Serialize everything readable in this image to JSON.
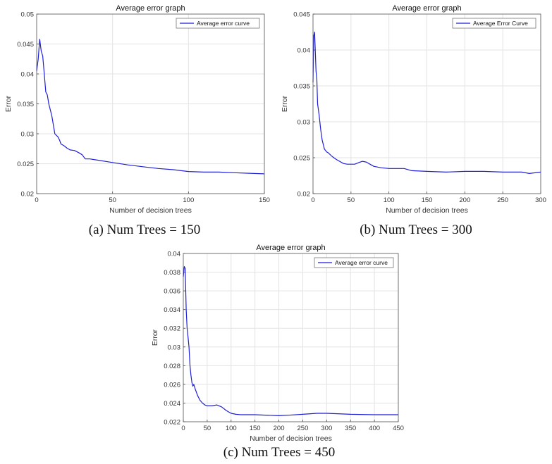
{
  "chart_data": [
    {
      "id": "a",
      "type": "line",
      "title": "Average error graph",
      "xlabel": "Number of decision trees",
      "ylabel": "Error",
      "caption": "(a) Num Trees = 150",
      "xlim": [
        0,
        150
      ],
      "ylim": [
        0.02,
        0.05
      ],
      "xticks": [
        0,
        50,
        100,
        150
      ],
      "yticks": [
        0.02,
        0.025,
        0.03,
        0.035,
        0.04,
        0.045,
        0.05
      ],
      "ytick_labels": [
        "0.02",
        "0.025",
        "0.03",
        "0.035",
        "0.04",
        "0.045",
        "0.05"
      ],
      "grid": true,
      "legend": "top-right",
      "color": "#1f1fd6",
      "series": [
        {
          "name": "Average error curve",
          "x": [
            0,
            1,
            2,
            3,
            4,
            5,
            6,
            7,
            8,
            10,
            12,
            14,
            15,
            16,
            18,
            20,
            22,
            25,
            28,
            30,
            32,
            35,
            40,
            50,
            60,
            70,
            80,
            90,
            100,
            110,
            120,
            130,
            140,
            150
          ],
          "y": [
            0.0405,
            0.0425,
            0.0458,
            0.0438,
            0.043,
            0.04,
            0.037,
            0.0365,
            0.035,
            0.033,
            0.03,
            0.0295,
            0.029,
            0.0283,
            0.028,
            0.0276,
            0.0273,
            0.0272,
            0.0268,
            0.0265,
            0.0258,
            0.0258,
            0.0256,
            0.0252,
            0.0248,
            0.0245,
            0.0242,
            0.024,
            0.0237,
            0.0236,
            0.0236,
            0.0235,
            0.0234,
            0.0233
          ]
        }
      ]
    },
    {
      "id": "b",
      "type": "line",
      "title": "Average error graph",
      "xlabel": "Number of decision trees",
      "ylabel": "Error",
      "caption": "(b) Num Trees = 300",
      "xlim": [
        0,
        300
      ],
      "ylim": [
        0.02,
        0.045
      ],
      "xticks": [
        0,
        50,
        100,
        150,
        200,
        250,
        300
      ],
      "yticks": [
        0.02,
        0.025,
        0.03,
        0.035,
        0.04,
        0.045
      ],
      "ytick_labels": [
        "0.02",
        "0.025",
        "0.03",
        "0.035",
        "0.04",
        "0.045"
      ],
      "grid": true,
      "legend": "top-right",
      "color": "#1f1fd6",
      "series": [
        {
          "name": "Average Error Curve",
          "x": [
            0,
            1,
            2,
            3,
            4,
            5,
            6,
            8,
            10,
            12,
            15,
            18,
            20,
            25,
            30,
            35,
            40,
            45,
            50,
            55,
            60,
            65,
            70,
            75,
            80,
            90,
            100,
            110,
            120,
            130,
            150,
            175,
            200,
            225,
            250,
            275,
            285,
            300
          ],
          "y": [
            0.0355,
            0.042,
            0.0425,
            0.04,
            0.037,
            0.036,
            0.0325,
            0.031,
            0.029,
            0.0275,
            0.0262,
            0.0258,
            0.0257,
            0.0252,
            0.0248,
            0.0245,
            0.0242,
            0.0241,
            0.0241,
            0.0241,
            0.0243,
            0.0245,
            0.0244,
            0.0241,
            0.0238,
            0.0236,
            0.0235,
            0.0235,
            0.0235,
            0.0232,
            0.0231,
            0.023,
            0.0231,
            0.0231,
            0.023,
            0.023,
            0.0228,
            0.023
          ]
        }
      ]
    },
    {
      "id": "c",
      "type": "line",
      "title": "Average error graph",
      "xlabel": "Number of decision trees",
      "ylabel": "Error",
      "caption": "(c) Num Trees = 450",
      "xlim": [
        0,
        450
      ],
      "ylim": [
        0.022,
        0.04
      ],
      "xticks": [
        0,
        50,
        100,
        150,
        200,
        250,
        300,
        350,
        400,
        450
      ],
      "yticks": [
        0.022,
        0.024,
        0.026,
        0.028,
        0.03,
        0.032,
        0.034,
        0.036,
        0.038,
        0.04
      ],
      "ytick_labels": [
        "0.022",
        "0.024",
        "0.026",
        "0.028",
        "0.03",
        "0.032",
        "0.034",
        "0.036",
        "0.038",
        "0.04"
      ],
      "grid": true,
      "legend": "top-right",
      "color": "#1f1fd6",
      "series": [
        {
          "name": "Average error curve",
          "x": [
            0,
            2,
            4,
            6,
            8,
            10,
            12,
            14,
            16,
            18,
            20,
            22,
            25,
            30,
            35,
            40,
            45,
            50,
            60,
            70,
            80,
            90,
            100,
            110,
            120,
            150,
            200,
            220,
            250,
            280,
            300,
            350,
            400,
            450
          ],
          "y": [
            0.0375,
            0.0386,
            0.0384,
            0.034,
            0.032,
            0.031,
            0.03,
            0.028,
            0.027,
            0.0262,
            0.0258,
            0.026,
            0.0255,
            0.0248,
            0.0243,
            0.024,
            0.0238,
            0.0237,
            0.0237,
            0.0238,
            0.0236,
            0.0232,
            0.0229,
            0.0228,
            0.02275,
            0.02275,
            0.02265,
            0.0227,
            0.0228,
            0.0229,
            0.0229,
            0.0228,
            0.02275,
            0.02275
          ]
        }
      ]
    }
  ]
}
